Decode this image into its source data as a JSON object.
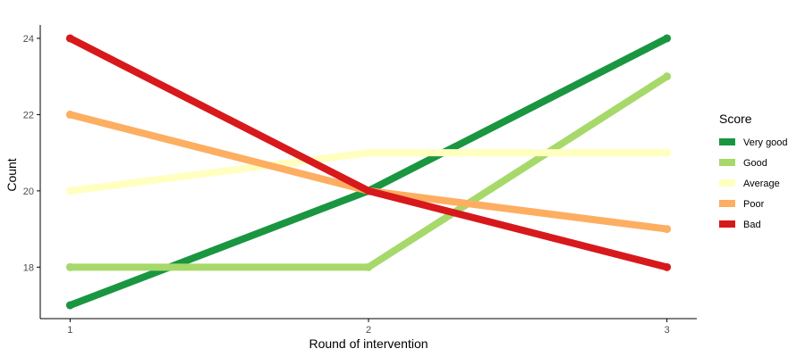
{
  "chart_data": {
    "type": "line",
    "title": "",
    "xlabel": "Round of intervention",
    "ylabel": "Count",
    "x": [
      1,
      2,
      3
    ],
    "x_ticks": [
      "1",
      "2",
      "3"
    ],
    "y_ticks": [
      "18",
      "20",
      "22",
      "24"
    ],
    "xlim": [
      0.9,
      3.1
    ],
    "ylim": [
      16.65,
      24.35
    ],
    "grid": false,
    "legend": {
      "title": "Score",
      "position": "right"
    },
    "series": [
      {
        "name": "Very good",
        "color": "#1a9641",
        "values": [
          17,
          20,
          24
        ]
      },
      {
        "name": "Good",
        "color": "#a6d96a",
        "values": [
          18,
          18,
          23
        ]
      },
      {
        "name": "Average",
        "color": "#ffffbf",
        "values": [
          20,
          21,
          21
        ]
      },
      {
        "name": "Poor",
        "color": "#fdae61",
        "values": [
          22,
          20,
          19
        ]
      },
      {
        "name": "Bad",
        "color": "#d7191c",
        "values": [
          24,
          20,
          18
        ]
      }
    ]
  }
}
